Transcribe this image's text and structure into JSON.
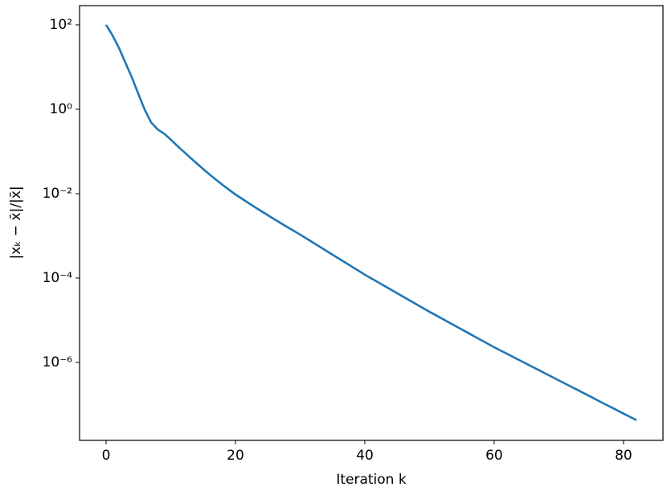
{
  "chart_data": {
    "type": "line",
    "xlabel": "Iteration k",
    "ylabel": "|xₖ − x̄|/|x̄|",
    "log_y": true,
    "grid": false,
    "xlim": [
      -4.1,
      86.1
    ],
    "ylim": [
      1.42e-08,
      286
    ],
    "xticks": [
      0,
      20,
      40,
      60,
      80
    ],
    "yticks": [
      {
        "value": 100,
        "label": "10²"
      },
      {
        "value": 1,
        "label": "10⁰"
      },
      {
        "value": 0.01,
        "label": "10⁻²"
      },
      {
        "value": 0.0001,
        "label": "10⁻⁴"
      },
      {
        "value": 1e-06,
        "label": "10⁻⁶"
      }
    ],
    "x": [
      0,
      1,
      2,
      3,
      4,
      5,
      6,
      7,
      8,
      9,
      10,
      11,
      12,
      13,
      14,
      15,
      16,
      17,
      18,
      19,
      20,
      21,
      22,
      23,
      24,
      25,
      26,
      27,
      28,
      29,
      30,
      31,
      32,
      33,
      34,
      35,
      36,
      37,
      38,
      39,
      40,
      41,
      42,
      43,
      44,
      45,
      46,
      47,
      48,
      49,
      50,
      51,
      52,
      53,
      54,
      55,
      56,
      57,
      58,
      59,
      60,
      61,
      62,
      63,
      64,
      65,
      66,
      67,
      68,
      69,
      70,
      71,
      72,
      73,
      74,
      75,
      76,
      77,
      78,
      79,
      80,
      81,
      82
    ],
    "series": [
      {
        "color": "#1f77b4",
        "values": [
          100,
          56.2,
          28.2,
          12.6,
          5.62,
          2.29,
          0.955,
          0.479,
          0.331,
          0.263,
          0.191,
          0.136,
          0.0989,
          0.0716,
          0.0525,
          0.0385,
          0.0285,
          0.0214,
          0.0162,
          0.0124,
          0.00955,
          0.00759,
          0.00603,
          0.00479,
          0.00385,
          0.00309,
          0.00248,
          0.002,
          0.00162,
          0.00132,
          0.00107,
          0.000861,
          0.000692,
          0.000556,
          0.000447,
          0.000359,
          0.000288,
          0.000232,
          0.000186,
          0.00015,
          0.00012,
          9.82e-05,
          8.02e-05,
          6.55e-05,
          5.35e-05,
          4.37e-05,
          3.56e-05,
          2.91e-05,
          2.38e-05,
          1.94e-05,
          1.58e-05,
          1.31e-05,
          1.08e-05,
          8.87e-06,
          7.31e-06,
          6.03e-06,
          4.97e-06,
          4.09e-06,
          3.37e-06,
          2.78e-06,
          2.29e-06,
          1.91e-06,
          1.6e-06,
          1.33e-06,
          1.11e-06,
          9.27e-07,
          7.73e-07,
          6.46e-07,
          5.38e-07,
          4.49e-07,
          3.75e-07,
          3.13e-07,
          2.61e-07,
          2.18e-07,
          1.82e-07,
          1.52e-07,
          1.26e-07,
          1.05e-07,
          8.81e-08,
          7.35e-08,
          6.12e-08,
          5.12e-08,
          4.27e-08
        ]
      }
    ]
  }
}
